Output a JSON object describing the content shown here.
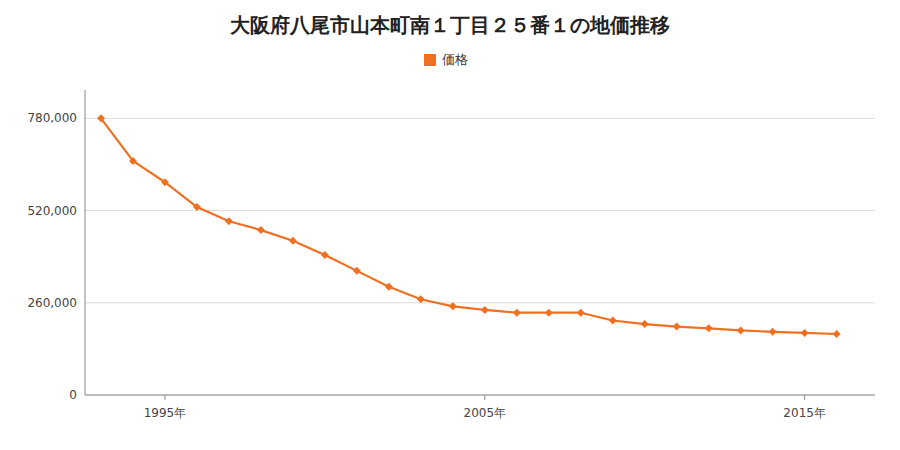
{
  "chart_data": {
    "type": "line",
    "title": "大阪府八尾市山本町南１丁目２５番１の地価推移",
    "x": [
      1993,
      1994,
      1995,
      1996,
      1997,
      1998,
      1999,
      2000,
      2001,
      2002,
      2003,
      2004,
      2005,
      2006,
      2007,
      2008,
      2009,
      2010,
      2011,
      2012,
      2013,
      2014,
      2015,
      2016
    ],
    "series": [
      {
        "name": "価格",
        "color": "#f07020",
        "marker": "diamond",
        "values": [
          780000,
          660000,
          600000,
          530000,
          490000,
          465000,
          435000,
          395000,
          350000,
          305000,
          270000,
          250000,
          240000,
          232000,
          232000,
          232000,
          210000,
          200000,
          193000,
          188000,
          182000,
          178000,
          175000,
          172000
        ]
      }
    ],
    "xlim": [
      1992.5,
      2017.2
    ],
    "xticks": [
      {
        "value": 1995,
        "label": "1995年"
      },
      {
        "value": 2005,
        "label": "2005年"
      },
      {
        "value": 2015,
        "label": "2015年"
      }
    ],
    "ylim": [
      0,
      860000
    ],
    "yticks": [
      0,
      {
        "value": 260000,
        "label": "260,000"
      },
      {
        "value": 520000,
        "label": "520,000"
      },
      {
        "value": 780000,
        "label": "780,000"
      }
    ],
    "grid": "y",
    "legend": "top"
  }
}
